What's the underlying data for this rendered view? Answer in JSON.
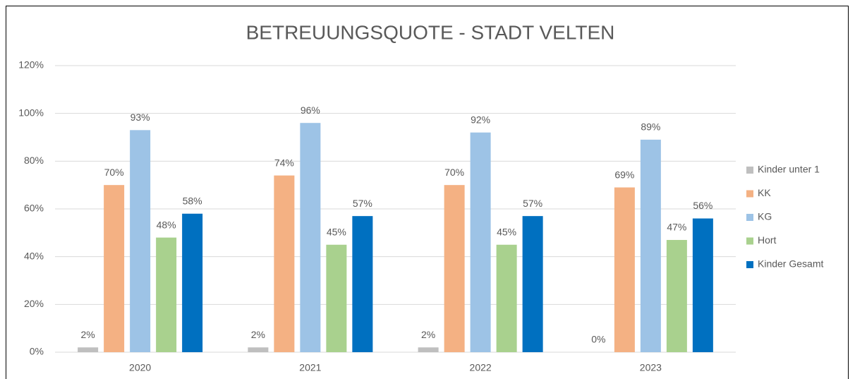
{
  "chart_data": {
    "type": "bar",
    "title": "BETREUUNGSQUOTE - STADT VELTEN",
    "categories": [
      "2020",
      "2021",
      "2022",
      "2023"
    ],
    "series": [
      {
        "name": "Kinder unter 1",
        "color": "#bfbfbf",
        "values": [
          2,
          2,
          2,
          0
        ],
        "value_labels": [
          "2%",
          "2%",
          "2%",
          "0%"
        ]
      },
      {
        "name": "KK",
        "color": "#f4b183",
        "values": [
          70,
          74,
          70,
          69
        ],
        "value_labels": [
          "70%",
          "74%",
          "70%",
          "69%"
        ]
      },
      {
        "name": "KG",
        "color": "#9dc3e6",
        "values": [
          93,
          96,
          92,
          89
        ],
        "value_labels": [
          "93%",
          "96%",
          "92%",
          "89%"
        ]
      },
      {
        "name": "Hort",
        "color": "#a9d18e",
        "values": [
          48,
          45,
          45,
          47
        ],
        "value_labels": [
          "48%",
          "45%",
          "45%",
          "47%"
        ]
      },
      {
        "name": "Kinder Gesamt",
        "color": "#0070c0",
        "values": [
          58,
          57,
          57,
          56
        ],
        "value_labels": [
          "58%",
          "57%",
          "57%",
          "56%"
        ]
      }
    ],
    "ylim": [
      0,
      120
    ],
    "yticks": [
      {
        "value": 0,
        "label": "0%"
      },
      {
        "value": 20,
        "label": "20%"
      },
      {
        "value": 40,
        "label": "40%"
      },
      {
        "value": 60,
        "label": "60%"
      },
      {
        "value": 80,
        "label": "80%"
      },
      {
        "value": 100,
        "label": "100%"
      },
      {
        "value": 120,
        "label": "120%"
      }
    ],
    "grid": true,
    "legend": "right"
  }
}
